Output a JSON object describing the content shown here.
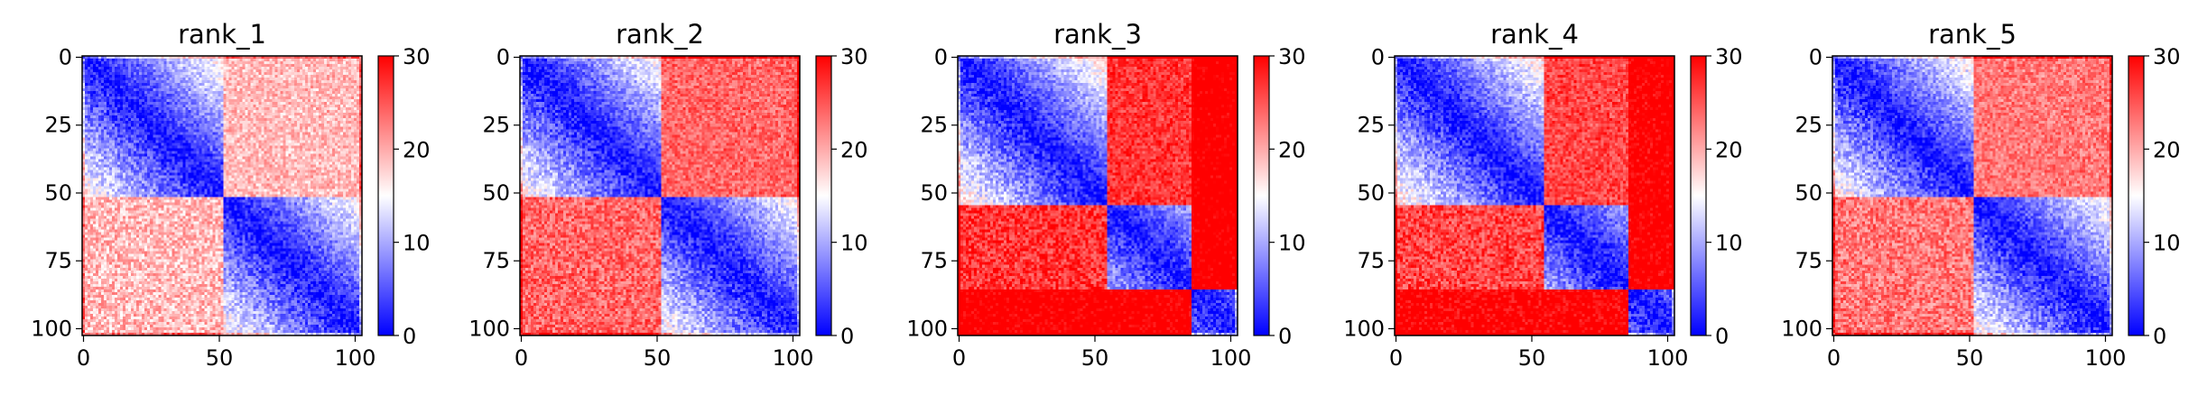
{
  "chart_data": [
    {
      "type": "heatmap",
      "title": "rank_1",
      "n": 103,
      "x_ticks": [
        0,
        50,
        100
      ],
      "y_ticks": [
        0,
        25,
        50,
        75,
        100
      ],
      "colorbar": {
        "min": 0,
        "max": 30,
        "ticks": [
          0,
          10,
          20,
          30
        ],
        "colormap": [
          "#0000ff",
          "#ffffff",
          "#ff0000"
        ]
      },
      "domains": [
        [
          0,
          52
        ],
        [
          52,
          103
        ]
      ],
      "inter_domain_distance": 19,
      "tail_rows": 0,
      "tail_distance": 30
    },
    {
      "type": "heatmap",
      "title": "rank_2",
      "n": 103,
      "x_ticks": [
        0,
        50,
        100
      ],
      "y_ticks": [
        0,
        25,
        50,
        75,
        100
      ],
      "colorbar": {
        "min": 0,
        "max": 30,
        "ticks": [
          0,
          10,
          20,
          30
        ],
        "colormap": [
          "#0000ff",
          "#ffffff",
          "#ff0000"
        ]
      },
      "domains": [
        [
          0,
          52
        ],
        [
          52,
          103
        ]
      ],
      "inter_domain_distance": 24,
      "tail_rows": 0,
      "tail_distance": 30
    },
    {
      "type": "heatmap",
      "title": "rank_3",
      "n": 103,
      "x_ticks": [
        0,
        50,
        100
      ],
      "y_ticks": [
        0,
        25,
        50,
        75,
        100
      ],
      "colorbar": {
        "min": 0,
        "max": 30,
        "ticks": [
          0,
          10,
          20,
          30
        ],
        "colormap": [
          "#0000ff",
          "#ffffff",
          "#ff0000"
        ]
      },
      "domains": [
        [
          0,
          55
        ],
        [
          55,
          86
        ],
        [
          86,
          103
        ]
      ],
      "inter_domain_distance": 27,
      "tail_rows": 17,
      "tail_distance": 32
    },
    {
      "type": "heatmap",
      "title": "rank_4",
      "n": 103,
      "x_ticks": [
        0,
        50,
        100
      ],
      "y_ticks": [
        0,
        25,
        50,
        75,
        100
      ],
      "colorbar": {
        "min": 0,
        "max": 30,
        "ticks": [
          0,
          10,
          20,
          30
        ],
        "colormap": [
          "#0000ff",
          "#ffffff",
          "#ff0000"
        ]
      },
      "domains": [
        [
          0,
          55
        ],
        [
          55,
          86
        ],
        [
          86,
          103
        ]
      ],
      "inter_domain_distance": 26,
      "tail_rows": 17,
      "tail_distance": 31
    },
    {
      "type": "heatmap",
      "title": "rank_5",
      "n": 103,
      "x_ticks": [
        0,
        50,
        100
      ],
      "y_ticks": [
        0,
        25,
        50,
        75,
        100
      ],
      "colorbar": {
        "min": 0,
        "max": 30,
        "ticks": [
          0,
          10,
          20,
          30
        ],
        "colormap": [
          "#0000ff",
          "#ffffff",
          "#ff0000"
        ]
      },
      "domains": [
        [
          0,
          52
        ],
        [
          52,
          103
        ]
      ],
      "inter_domain_distance": 23,
      "tail_rows": 0,
      "tail_distance": 30
    }
  ]
}
